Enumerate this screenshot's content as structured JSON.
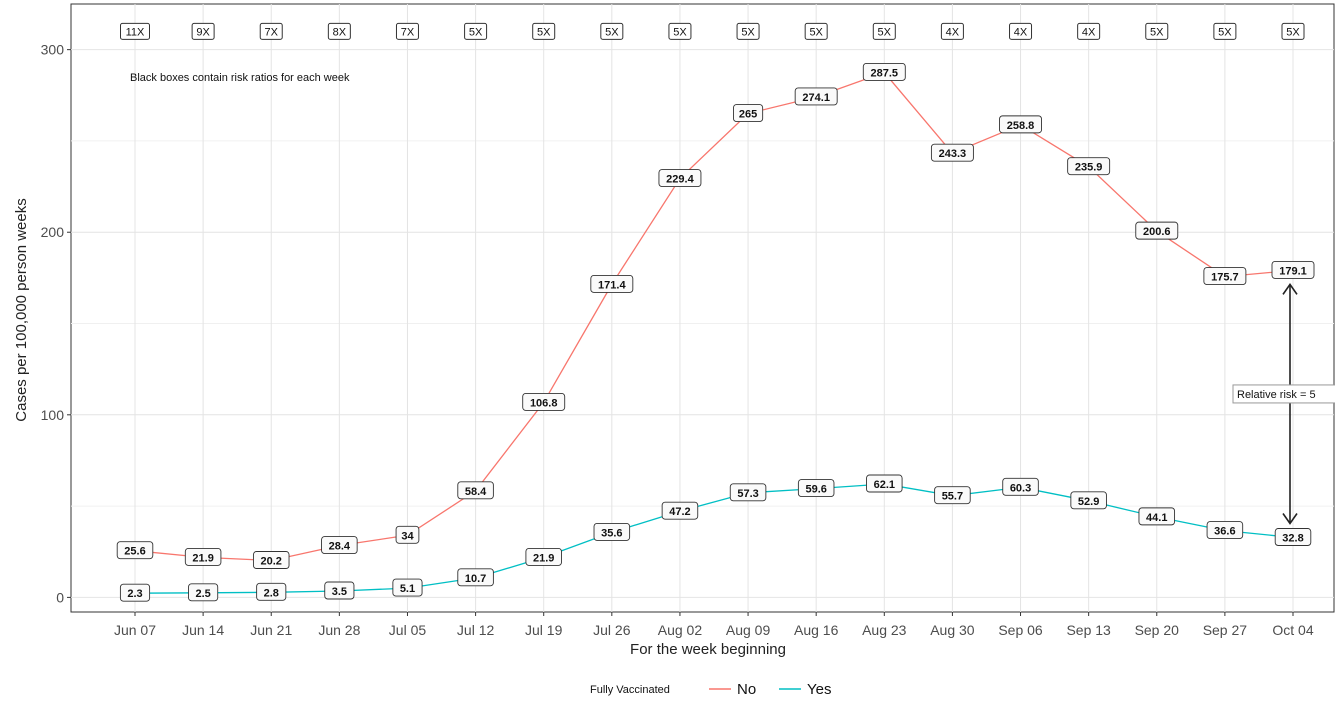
{
  "chart_data": {
    "type": "line",
    "title": "",
    "xlabel": "For the week beginning",
    "ylabel": "Cases per 100,000 person weeks",
    "ylim": [
      -8,
      325
    ],
    "yticks": [
      0,
      100,
      200,
      300
    ],
    "categories": [
      "Jun 07",
      "Jun 14",
      "Jun 21",
      "Jun 28",
      "Jul 05",
      "Jul 12",
      "Jul 19",
      "Jul 26",
      "Aug 02",
      "Aug 09",
      "Aug 16",
      "Aug 23",
      "Aug 30",
      "Sep 06",
      "Sep 13",
      "Sep 20",
      "Sep 27",
      "Oct 04"
    ],
    "grid": true,
    "legend_title": "Fully Vaccinated",
    "legend_position": "bottom",
    "series": [
      {
        "name": "No",
        "color": "#f8766d",
        "values": [
          25.6,
          21.9,
          20.2,
          28.4,
          34,
          58.4,
          106.8,
          171.4,
          229.4,
          265,
          274.1,
          287.5,
          243.3,
          258.8,
          235.9,
          200.6,
          175.7,
          179.1
        ],
        "labels": [
          "25.6",
          "21.9",
          "20.2",
          "28.4",
          "34",
          "58.4",
          "106.8",
          "171.4",
          "229.4",
          "265",
          "274.1",
          "287.5",
          "243.3",
          "258.8",
          "235.9",
          "200.6",
          "175.7",
          "179.1"
        ]
      },
      {
        "name": "Yes",
        "color": "#00bfc4",
        "values": [
          2.3,
          2.5,
          2.8,
          3.5,
          5.1,
          10.7,
          21.9,
          35.6,
          47.2,
          57.3,
          59.6,
          62.1,
          55.7,
          60.3,
          52.9,
          44.1,
          36.6,
          32.8
        ],
        "labels": [
          "2.3",
          "2.5",
          "2.8",
          "3.5",
          "5.1",
          "10.7",
          "21.9",
          "35.6",
          "47.2",
          "57.3",
          "59.6",
          "62.1",
          "55.7",
          "60.3",
          "52.9",
          "44.1",
          "36.6",
          "32.8"
        ]
      }
    ],
    "risk_ratios": [
      "11X",
      "9X",
      "7X",
      "8X",
      "7X",
      "5X",
      "5X",
      "5X",
      "5X",
      "5X",
      "5X",
      "5X",
      "4X",
      "4X",
      "4X",
      "5X",
      "5X",
      "5X"
    ],
    "risk_ratio_y": 310,
    "annotations": {
      "note": "Black boxes contain risk ratios for each week",
      "relative_risk": "Relative risk = 5"
    }
  }
}
